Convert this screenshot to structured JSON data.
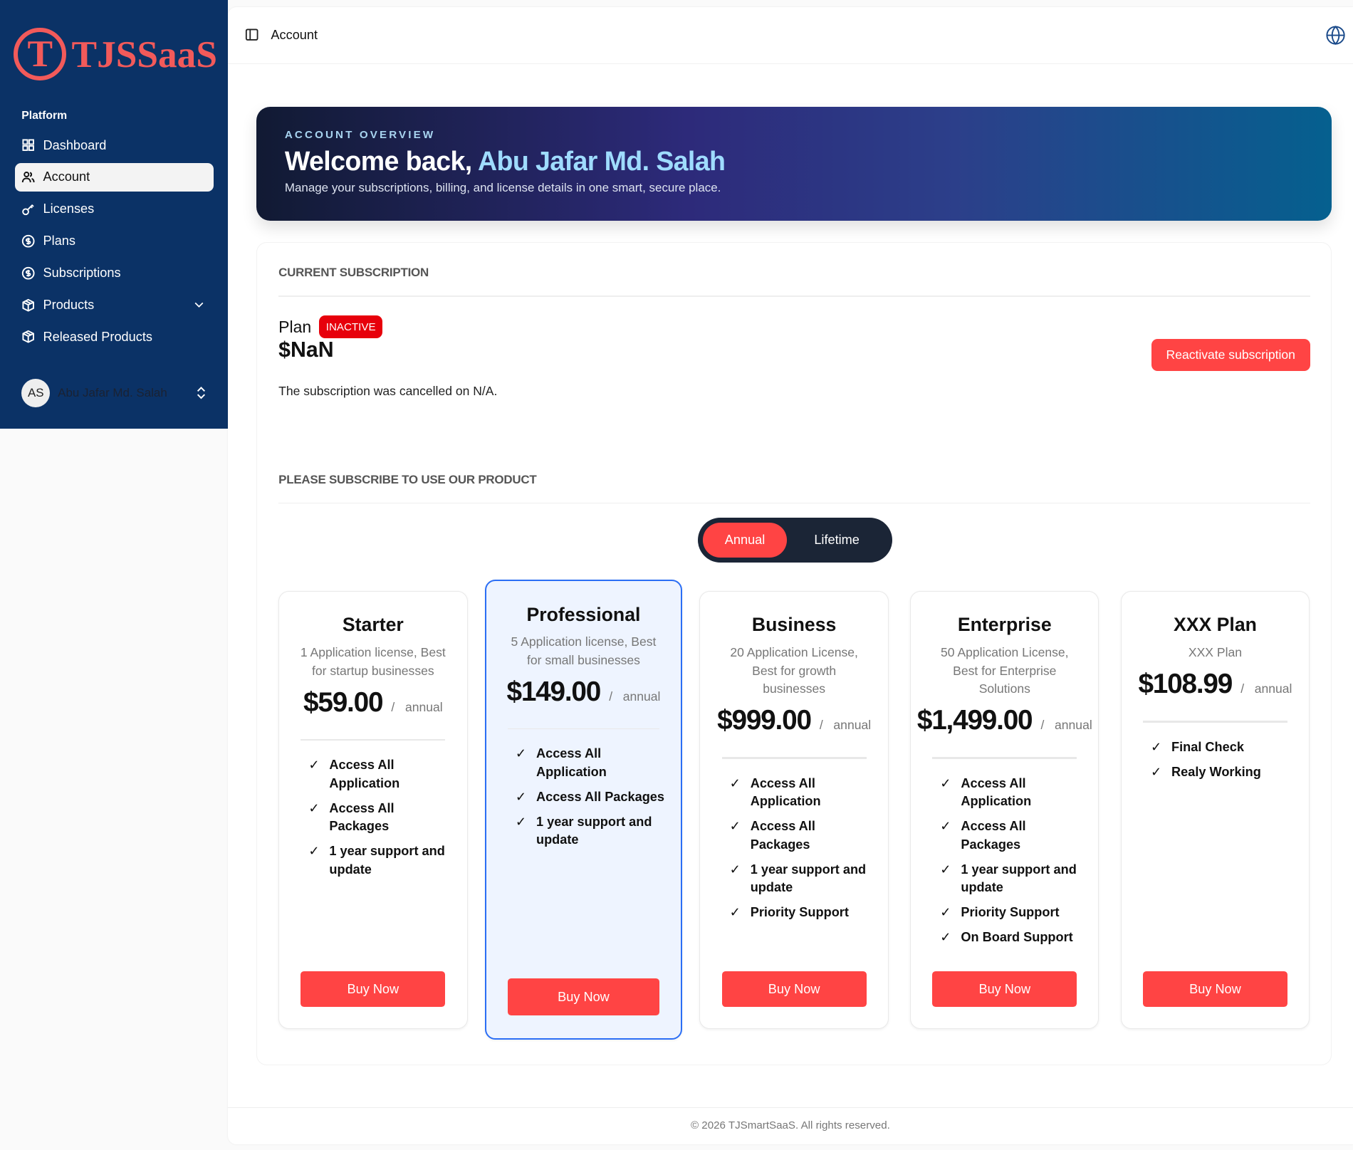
{
  "brand": {
    "logo_letter": "T",
    "logo_text": "TJSSaaS",
    "accent": "#f25a5a"
  },
  "sidebar": {
    "group_label": "Platform",
    "items": [
      {
        "label": "Dashboard",
        "icon": "grid-icon"
      },
      {
        "label": "Account",
        "icon": "users-icon",
        "active": true
      },
      {
        "label": "Licenses",
        "icon": "key-icon"
      },
      {
        "label": "Plans",
        "icon": "dollar-badge-icon"
      },
      {
        "label": "Subscriptions",
        "icon": "dollar-badge-icon"
      },
      {
        "label": "Products",
        "icon": "package-icon",
        "expandable": true
      },
      {
        "label": "Released Products",
        "icon": "package-icon"
      }
    ],
    "user": {
      "initials": "AS",
      "name": "Abu Jafar Md. Salah"
    }
  },
  "header": {
    "breadcrumb": "Account"
  },
  "banner": {
    "eyebrow": "ACCOUNT OVERVIEW",
    "greeting": "Welcome back, ",
    "name": "Abu Jafar Md. Salah",
    "subtitle": "Manage your subscriptions, billing, and license details in one smart, secure place."
  },
  "subscription": {
    "heading": "CURRENT SUBSCRIPTION",
    "plan_label": "Plan",
    "status": "INACTIVE",
    "price": "$NaN",
    "reactivate_label": "Reactivate subscription",
    "cancel_text": "The subscription was cancelled on N/A."
  },
  "pricing": {
    "heading": "PLEASE SUBSCRIBE TO USE OUR PRODUCT",
    "toggle": {
      "options": [
        "Annual",
        "Lifetime"
      ],
      "selected": "Annual"
    },
    "plans": [
      {
        "name": "Starter",
        "description": "1 Application license, Best for startup businesses",
        "price": "$59.00",
        "period": "annual",
        "features": [
          "Access All Application",
          "Access All Packages",
          "1 year support and update"
        ],
        "cta": "Buy Now"
      },
      {
        "name": "Professional",
        "description": "5 Application license, Best for small businesses",
        "price": "$149.00",
        "period": "annual",
        "featured": true,
        "features": [
          "Access All Application",
          "Access All Packages",
          "1 year support and update"
        ],
        "cta": "Buy Now"
      },
      {
        "name": "Business",
        "description": "20 Application License, Best for growth businesses",
        "price": "$999.00",
        "period": "annual",
        "features": [
          "Access All Application",
          "Access All Packages",
          "1 year support and update",
          "Priority Support"
        ],
        "cta": "Buy Now"
      },
      {
        "name": "Enterprise",
        "description": "50 Application License, Best for Enterprise Solutions",
        "price": "$1,499.00",
        "period": "annual",
        "features": [
          "Access All Application",
          "Access All Packages",
          "1 year support and update",
          "Priority Support",
          "On Board Support"
        ],
        "cta": "Buy Now"
      },
      {
        "name": "XXX Plan",
        "description": "XXX Plan",
        "price": "$108.99",
        "period": "annual",
        "features": [
          "Final Check",
          "Realy Working"
        ],
        "cta": "Buy Now"
      }
    ]
  },
  "footer": {
    "text": "© 2026 TJSmartSaaS. All rights reserved."
  },
  "colors": {
    "sidebar": "#0b3266",
    "primary": "#ff4444",
    "badge": "#e7000b",
    "featured_border": "#2b6ef5"
  }
}
